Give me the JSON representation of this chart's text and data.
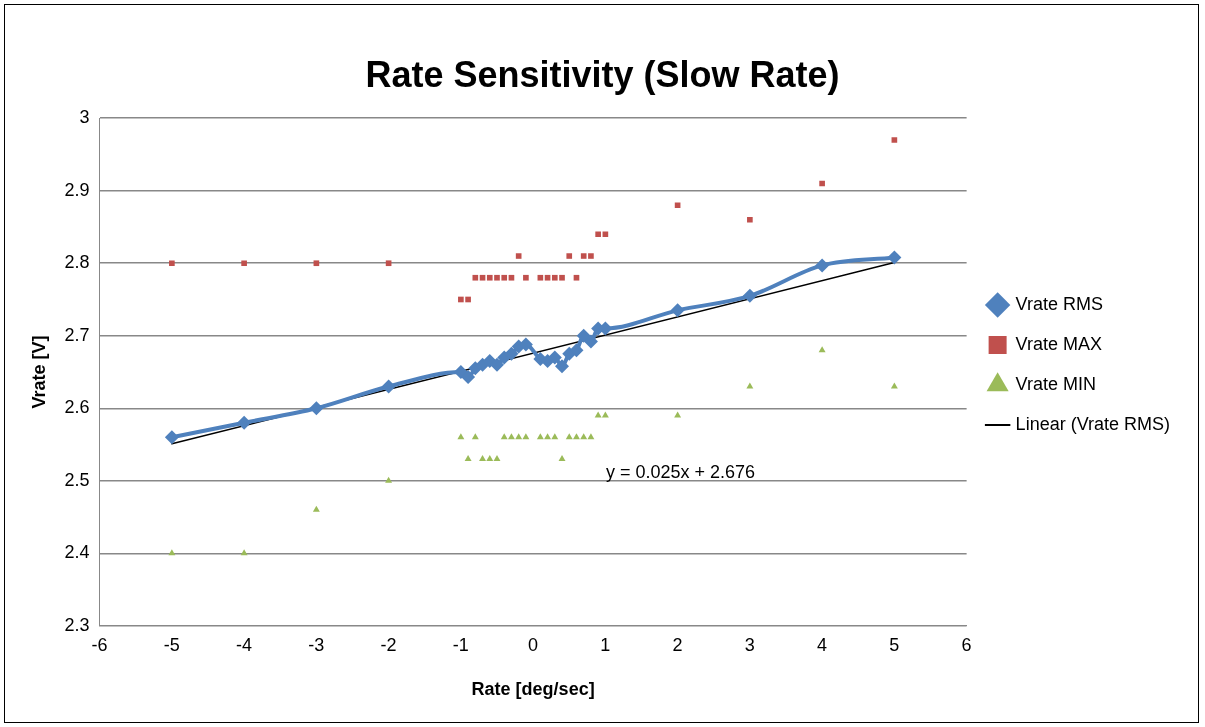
{
  "chart_data": {
    "type": "scatter",
    "title": "Rate Sensitivity (Slow Rate)",
    "xlabel": "Rate [deg/sec]",
    "ylabel": "Vrate [V]",
    "xlim": [
      -6,
      6
    ],
    "xticks": [
      -6,
      -5,
      -4,
      -3,
      -2,
      -1,
      0,
      1,
      2,
      3,
      4,
      5,
      6
    ],
    "ylim": [
      2.3,
      3
    ],
    "yticks": [
      2.3,
      2.4,
      2.5,
      2.6,
      2.7,
      2.8,
      2.9,
      3
    ],
    "grid": "y",
    "legend": "right",
    "annotations": [
      "y = 0.025x + 2.676"
    ],
    "series": [
      {
        "name": "Vrate RMS",
        "type": "line",
        "marker": "diamond",
        "color": "#4f81bd",
        "x": [
          -5,
          -4,
          -3,
          -2,
          -1,
          -0.9,
          -0.8,
          -0.7,
          -0.6,
          -0.5,
          -0.4,
          -0.3,
          -0.2,
          -0.1,
          0.1,
          0.2,
          0.3,
          0.4,
          0.5,
          0.6,
          0.7,
          0.8,
          0.9,
          1,
          2,
          3,
          4,
          5
        ],
        "values": [
          2.56,
          2.58,
          2.6,
          2.63,
          2.65,
          2.643,
          2.655,
          2.66,
          2.665,
          2.66,
          2.67,
          2.675,
          2.685,
          2.688,
          2.668,
          2.665,
          2.67,
          2.658,
          2.675,
          2.68,
          2.7,
          2.692,
          2.71,
          2.71,
          2.735,
          2.755,
          2.797,
          2.808
        ]
      },
      {
        "name": "Vrate MAX",
        "marker": "square",
        "color": "#c0504d",
        "x": [
          -5,
          -4,
          -3,
          -2,
          -1,
          -0.9,
          -0.8,
          -0.7,
          -0.6,
          -0.5,
          -0.4,
          -0.3,
          -0.2,
          -0.1,
          0.1,
          0.2,
          0.3,
          0.4,
          0.5,
          0.6,
          0.7,
          0.8,
          0.9,
          1,
          2,
          3,
          4,
          5
        ],
        "values": [
          2.8,
          2.8,
          2.8,
          2.8,
          2.75,
          2.75,
          2.78,
          2.78,
          2.78,
          2.78,
          2.78,
          2.78,
          2.81,
          2.78,
          2.78,
          2.78,
          2.78,
          2.78,
          2.81,
          2.78,
          2.81,
          2.81,
          2.84,
          2.84,
          2.88,
          2.86,
          2.91,
          2.97
        ]
      },
      {
        "name": "Vrate MIN",
        "marker": "triangle",
        "color": "#9bbb59",
        "x": [
          -5,
          -4,
          -3,
          -2,
          -1,
          -0.9,
          -0.8,
          -0.7,
          -0.6,
          -0.5,
          -0.4,
          -0.3,
          -0.2,
          -0.1,
          0.1,
          0.2,
          0.3,
          0.4,
          0.5,
          0.6,
          0.7,
          0.8,
          0.9,
          1,
          2,
          3,
          4,
          5
        ],
        "values": [
          2.4,
          2.4,
          2.46,
          2.5,
          2.56,
          2.53,
          2.56,
          2.53,
          2.53,
          2.53,
          2.56,
          2.56,
          2.56,
          2.56,
          2.56,
          2.56,
          2.56,
          2.53,
          2.56,
          2.56,
          2.56,
          2.56,
          2.59,
          2.59,
          2.59,
          2.63,
          2.68,
          2.63
        ]
      },
      {
        "name": "Linear (Vrate RMS)",
        "type": "line",
        "marker": "none",
        "line_style": "solid",
        "color": "#000000",
        "x": [
          -5,
          5
        ],
        "values": [
          2.551,
          2.801
        ]
      }
    ]
  }
}
